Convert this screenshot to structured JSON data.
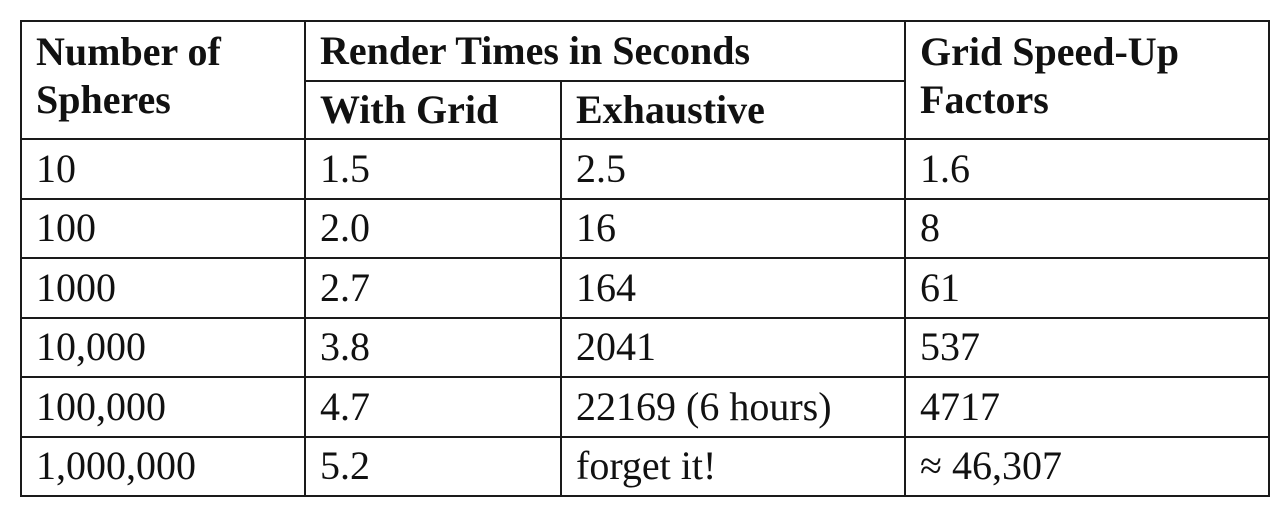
{
  "table": {
    "header": {
      "number_of_spheres_line1": "Number of",
      "number_of_spheres_line2": "Spheres",
      "render_times": "Render Times in Seconds",
      "with_grid": "With Grid",
      "exhaustive": "Exhaustive",
      "speedup_line1": "Grid Speed-Up",
      "speedup_line2": "Factors"
    },
    "rows": [
      {
        "spheres": "10",
        "with_grid": "1.5",
        "exhaustive": "2.5",
        "speedup": "1.6"
      },
      {
        "spheres": "100",
        "with_grid": "2.0",
        "exhaustive": "16",
        "speedup": "8"
      },
      {
        "spheres": "1000",
        "with_grid": "2.7",
        "exhaustive": "164",
        "speedup": "61"
      },
      {
        "spheres": "10,000",
        "with_grid": "3.8",
        "exhaustive": "2041",
        "speedup": "537"
      },
      {
        "spheres": "100,000",
        "with_grid": "4.7",
        "exhaustive": "22169 (6 hours)",
        "speedup": "4717"
      },
      {
        "spheres": "1,000,000",
        "with_grid": "5.2",
        "exhaustive": "forget it!",
        "speedup": "≈ 46,307"
      }
    ]
  }
}
